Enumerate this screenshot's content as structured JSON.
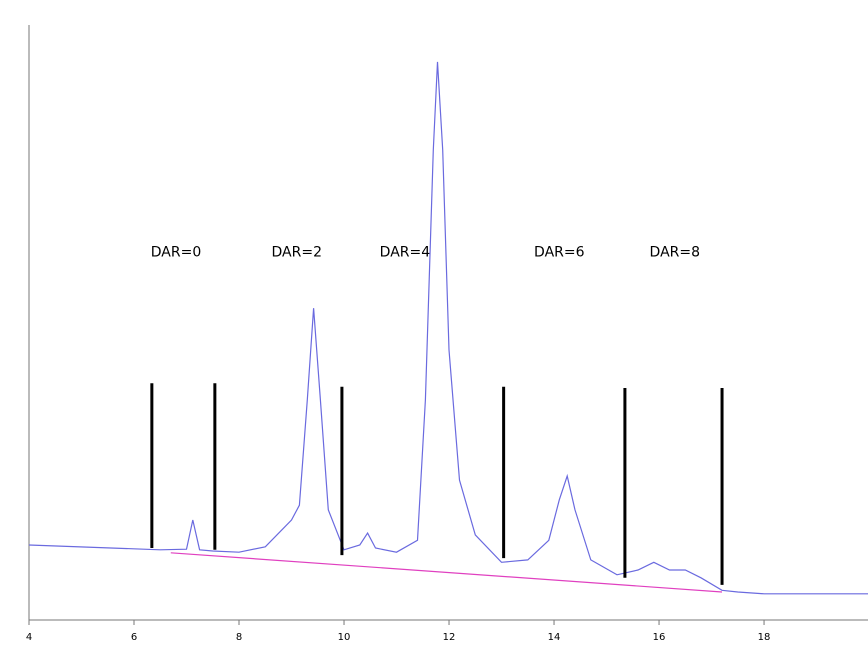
{
  "chart_data": {
    "type": "line",
    "xlim": [
      4,
      19.98
    ],
    "ylim": [
      0,
      100
    ],
    "xticks": [
      4,
      6,
      8,
      10,
      12,
      14,
      16,
      18
    ],
    "series": [
      {
        "color": "#6a6adf",
        "x": [
          4,
          6.5,
          7.0,
          7.12,
          7.25,
          7.5,
          8,
          8.5,
          9.0,
          9.15,
          9.3,
          9.42,
          9.55,
          9.7,
          10,
          10.3,
          10.45,
          10.6,
          11.0,
          11.4,
          11.55,
          11.7,
          11.78,
          11.88,
          12.0,
          12.2,
          12.5,
          13.0,
          13.5,
          13.9,
          14.1,
          14.25,
          14.4,
          14.7,
          15.2,
          15.6,
          15.9,
          16.2,
          16.5,
          16.8,
          17.2,
          17.5,
          18,
          19.98
        ],
        "values": [
          12.6,
          11.8,
          11.9,
          16.8,
          11.8,
          11.6,
          11.4,
          12.3,
          16.8,
          19.3,
          37.0,
          52.4,
          37.0,
          18.5,
          11.8,
          12.6,
          14.6,
          12.1,
          11.4,
          13.4,
          37.0,
          79.0,
          93.8,
          79.0,
          45.4,
          23.5,
          14.3,
          9.7,
          10.1,
          13.4,
          20.2,
          24.2,
          18.5,
          10.1,
          7.6,
          8.4,
          9.7,
          8.4,
          8.4,
          7.1,
          5.0,
          4.7,
          4.4,
          4.4
        ]
      },
      {
        "color": "#e040c0",
        "x": [
          6.7,
          17.2
        ],
        "values": [
          11.3,
          4.7
        ]
      }
    ],
    "markers": [
      {
        "x": 6.34,
        "y1": 39.8,
        "y2": 12.1
      },
      {
        "x": 7.54,
        "y1": 39.8,
        "y2": 11.8
      },
      {
        "x": 9.96,
        "y1": 39.2,
        "y2": 10.9
      },
      {
        "x": 13.04,
        "y1": 39.2,
        "y2": 10.4
      },
      {
        "x": 15.35,
        "y1": 39.0,
        "y2": 7.1
      },
      {
        "x": 17.2,
        "y1": 39.0,
        "y2": 5.9
      }
    ],
    "annotations": [
      {
        "text": "DAR=0",
        "x": 6.8,
        "y": 61.8
      },
      {
        "text": "DAR=2",
        "x": 9.1,
        "y": 61.8
      },
      {
        "text": "DAR=4",
        "x": 11.16,
        "y": 61.8
      },
      {
        "text": "DAR=6",
        "x": 14.1,
        "y": 61.8
      },
      {
        "text": "DAR=8",
        "x": 16.3,
        "y": 61.8
      }
    ]
  }
}
